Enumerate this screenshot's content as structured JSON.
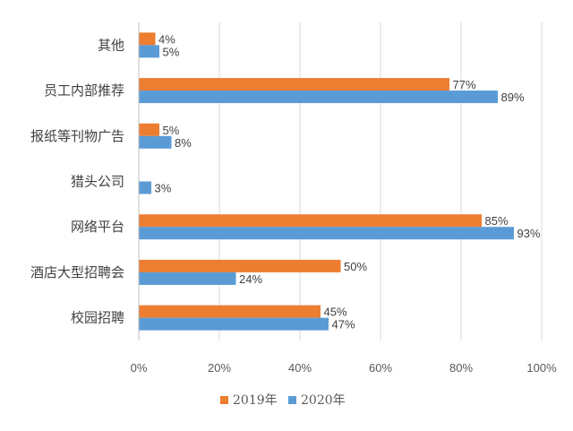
{
  "chart_data": {
    "type": "bar",
    "orientation": "horizontal",
    "categories": [
      "其他",
      "员工内部推荐",
      "报纸等刊物广告",
      "猎头公司",
      "网络平台",
      "酒店大型招聘会",
      "校园招聘"
    ],
    "series": [
      {
        "name": "2019年",
        "color": "#ed7d31",
        "values": [
          4,
          77,
          5,
          null,
          85,
          50,
          45
        ],
        "labels": [
          "4%",
          "77%",
          "5%",
          "",
          "85%",
          "50%",
          "45%"
        ]
      },
      {
        "name": "2020年",
        "color": "#5b9bd5",
        "values": [
          5,
          89,
          8,
          3,
          93,
          24,
          47
        ],
        "labels": [
          "5%",
          "89%",
          "8%",
          "3%",
          "93%",
          "24%",
          "47%"
        ]
      }
    ],
    "xlim": [
      0,
      100
    ],
    "xticks": [
      0,
      20,
      40,
      60,
      80,
      100
    ],
    "xtick_labels": [
      "0%",
      "20%",
      "40%",
      "60%",
      "80%",
      "100%"
    ],
    "grid": true,
    "legend_position": "bottom"
  }
}
